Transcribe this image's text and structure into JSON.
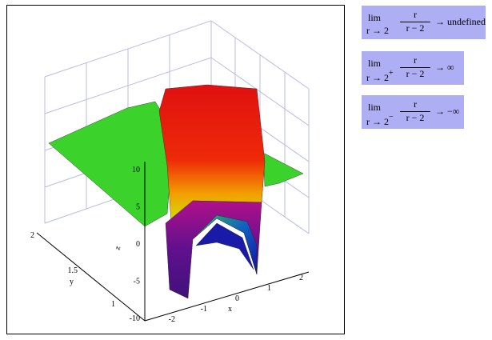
{
  "plot": {
    "z_label": "z",
    "x_label": "x",
    "y_label": "y",
    "z_ticks": [
      "10",
      "5",
      "0",
      "-5",
      "-10"
    ],
    "x_ticks": [
      "-2",
      "-1",
      "0",
      "1",
      "2"
    ],
    "y_ticks": [
      "2",
      "1.5",
      "1"
    ]
  },
  "limits": [
    {
      "op": "lim",
      "sub": "r → 2",
      "sup": "",
      "num": "r",
      "den": "r − 2",
      "result": "→ undefined"
    },
    {
      "op": "lim",
      "sub": "r → 2",
      "sup": "+",
      "num": "r",
      "den": "r − 2",
      "result": "→ ∞"
    },
    {
      "op": "lim",
      "sub": "r → 2",
      "sup": "−",
      "num": "r",
      "den": "r − 2",
      "result": "→ −∞"
    }
  ]
}
